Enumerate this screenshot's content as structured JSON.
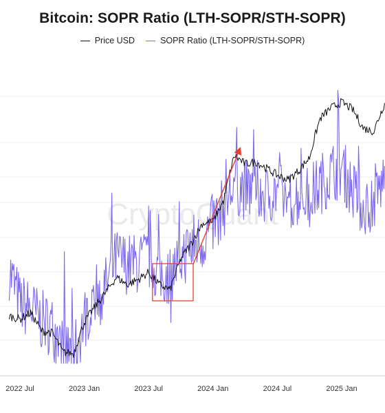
{
  "chart_data": {
    "type": "line",
    "title": "Bitcoin: SOPR Ratio (LTH-SOPR/STH-SOPR)",
    "x": [
      "2022-06",
      "2022-07",
      "2022-08",
      "2022-09",
      "2022-10",
      "2022-11",
      "2022-12",
      "2023-01",
      "2023-02",
      "2023-03",
      "2023-04",
      "2023-05",
      "2023-06",
      "2023-07",
      "2023-08",
      "2023-09",
      "2023-10",
      "2023-11",
      "2023-12",
      "2024-01",
      "2024-02",
      "2024-03",
      "2024-04",
      "2024-05",
      "2024-06",
      "2024-07",
      "2024-08",
      "2024-09",
      "2024-10",
      "2024-11",
      "2024-12",
      "2025-01",
      "2025-02",
      "2025-03",
      "2025-04",
      "2025-05"
    ],
    "series": [
      {
        "name": "Price USD",
        "color": "#111111",
        "values": [
          22000,
          21500,
          22500,
          19800,
          19500,
          17000,
          16800,
          21000,
          23500,
          26000,
          29000,
          27500,
          28500,
          30000,
          27500,
          26500,
          33000,
          37000,
          42500,
          43000,
          50000,
          69000,
          65000,
          66000,
          63000,
          60000,
          58000,
          62000,
          68000,
          90000,
          97000,
          101000,
          96000,
          84000,
          82000,
          100000
        ]
      },
      {
        "name": "SOPR Ratio (LTH-SOPR/STH-SOPR)",
        "color": "#7b68ee",
        "values": [
          1.9,
          1.6,
          1.55,
          1.45,
          1.4,
          1.2,
          1.15,
          1.45,
          1.7,
          1.75,
          2.0,
          1.95,
          1.95,
          2.0,
          1.85,
          1.85,
          2.0,
          2.1,
          2.15,
          2.3,
          2.45,
          2.65,
          2.6,
          2.6,
          2.55,
          2.6,
          2.5,
          2.55,
          2.55,
          2.65,
          2.75,
          2.8,
          2.6,
          2.45,
          2.5,
          2.7
        ]
      }
    ],
    "xticks": [
      "2022 Jul",
      "2023 Jan",
      "2023 Jul",
      "2024 Jan",
      "2024 Jul",
      "2025 Jan"
    ],
    "grid": true,
    "legend": "top-center",
    "watermark": "CryptoQuant",
    "annotations": [
      {
        "type": "box",
        "x_start": "2023-08",
        "x_end": "2023-10",
        "color": "#e8412c"
      },
      {
        "type": "arrow",
        "from": "2023-10",
        "to": "2024-03",
        "color": "#e8412c"
      }
    ]
  }
}
